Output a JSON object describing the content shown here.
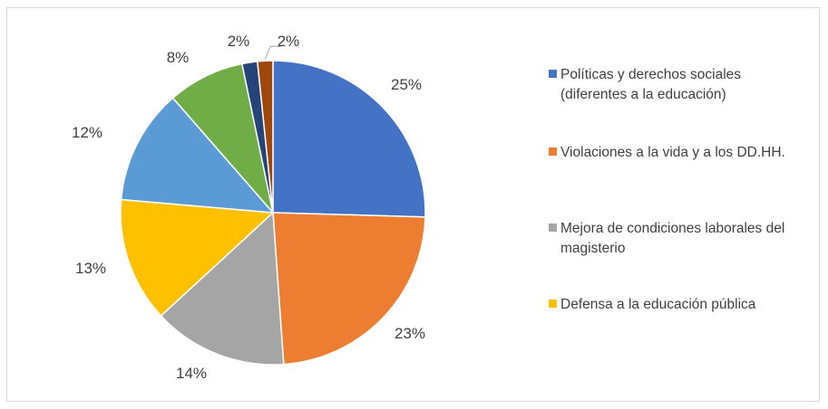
{
  "chart_data": {
    "type": "pie",
    "start_angle_deg": 0,
    "direction": "clockwise",
    "slices": [
      {
        "label": "Políticas y derechos sociales (diferentes a la educación)",
        "value": 25,
        "value_label": "25%",
        "color": "#4472c4"
      },
      {
        "label": "Violaciones a la vida y a los DD.HH.",
        "value": 23,
        "value_label": "23%",
        "color": "#ed7d31"
      },
      {
        "label": "Mejora de condiciones laborales del magisterio",
        "value": 14,
        "value_label": "14%",
        "color": "#a5a5a5"
      },
      {
        "label": "Defensa a la educación pública",
        "value": 13,
        "value_label": "13%",
        "color": "#ffc000"
      },
      {
        "label": "",
        "value": 12,
        "value_label": "12%",
        "color": "#5b9bd5"
      },
      {
        "label": "",
        "value": 8,
        "value_label": "8%",
        "color": "#70ad47"
      },
      {
        "label": "",
        "value": 1.6,
        "value_label": "2%",
        "color": "#264478"
      },
      {
        "label": "",
        "value": 1.6,
        "value_label": "2%",
        "color": "#9e480e"
      }
    ],
    "legend": {
      "position": "right",
      "items": [
        {
          "text": "Políticas y derechos sociales\n(diferentes a la educación)",
          "color": "#4472c4"
        },
        {
          "text": "Violaciones a la vida y a los DD.HH.",
          "color": "#ed7d31"
        },
        {
          "text": "Mejora de condiciones laborales del\nmagisterio",
          "color": "#a5a5a5"
        },
        {
          "text": "Defensa a la educación pública",
          "color": "#ffc000"
        }
      ]
    }
  }
}
